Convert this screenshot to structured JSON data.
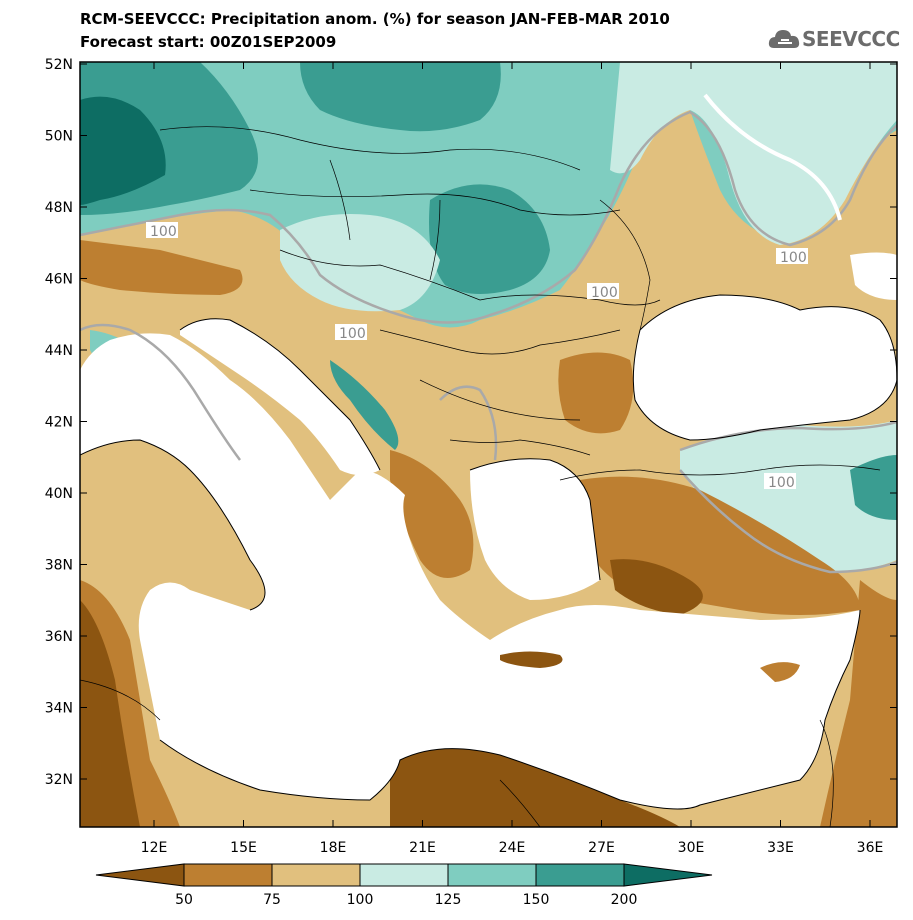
{
  "title": {
    "line1": "RCM-SEEVCCC: Precipitation anom. (%) for season JAN-FEB-MAR 2010",
    "line2": "Forecast start: 00Z01SEP2009"
  },
  "logo": {
    "text": "SEEVCCC",
    "icon": "cloud-icon"
  },
  "map": {
    "lat_labels": [
      "52N",
      "50N",
      "48N",
      "46N",
      "44N",
      "42N",
      "40N",
      "38N",
      "36N",
      "34N",
      "32N"
    ],
    "lon_labels": [
      "12E",
      "15E",
      "18E",
      "21E",
      "24E",
      "27E",
      "30E",
      "33E",
      "36E"
    ],
    "contour_label": "100",
    "colors": {
      "land_default": "#e1c07e",
      "sea": "#ffffff",
      "frame": "#000000",
      "contour": "#a9a9a9"
    }
  },
  "colorbar": {
    "labels": [
      "50",
      "75",
      "100",
      "125",
      "150",
      "200"
    ],
    "colors": [
      "#8c5511",
      "#bd7f31",
      "#e1c07e",
      "#c9ebe3",
      "#7fcdc0",
      "#3a9d91",
      "#0d6d63"
    ]
  }
}
